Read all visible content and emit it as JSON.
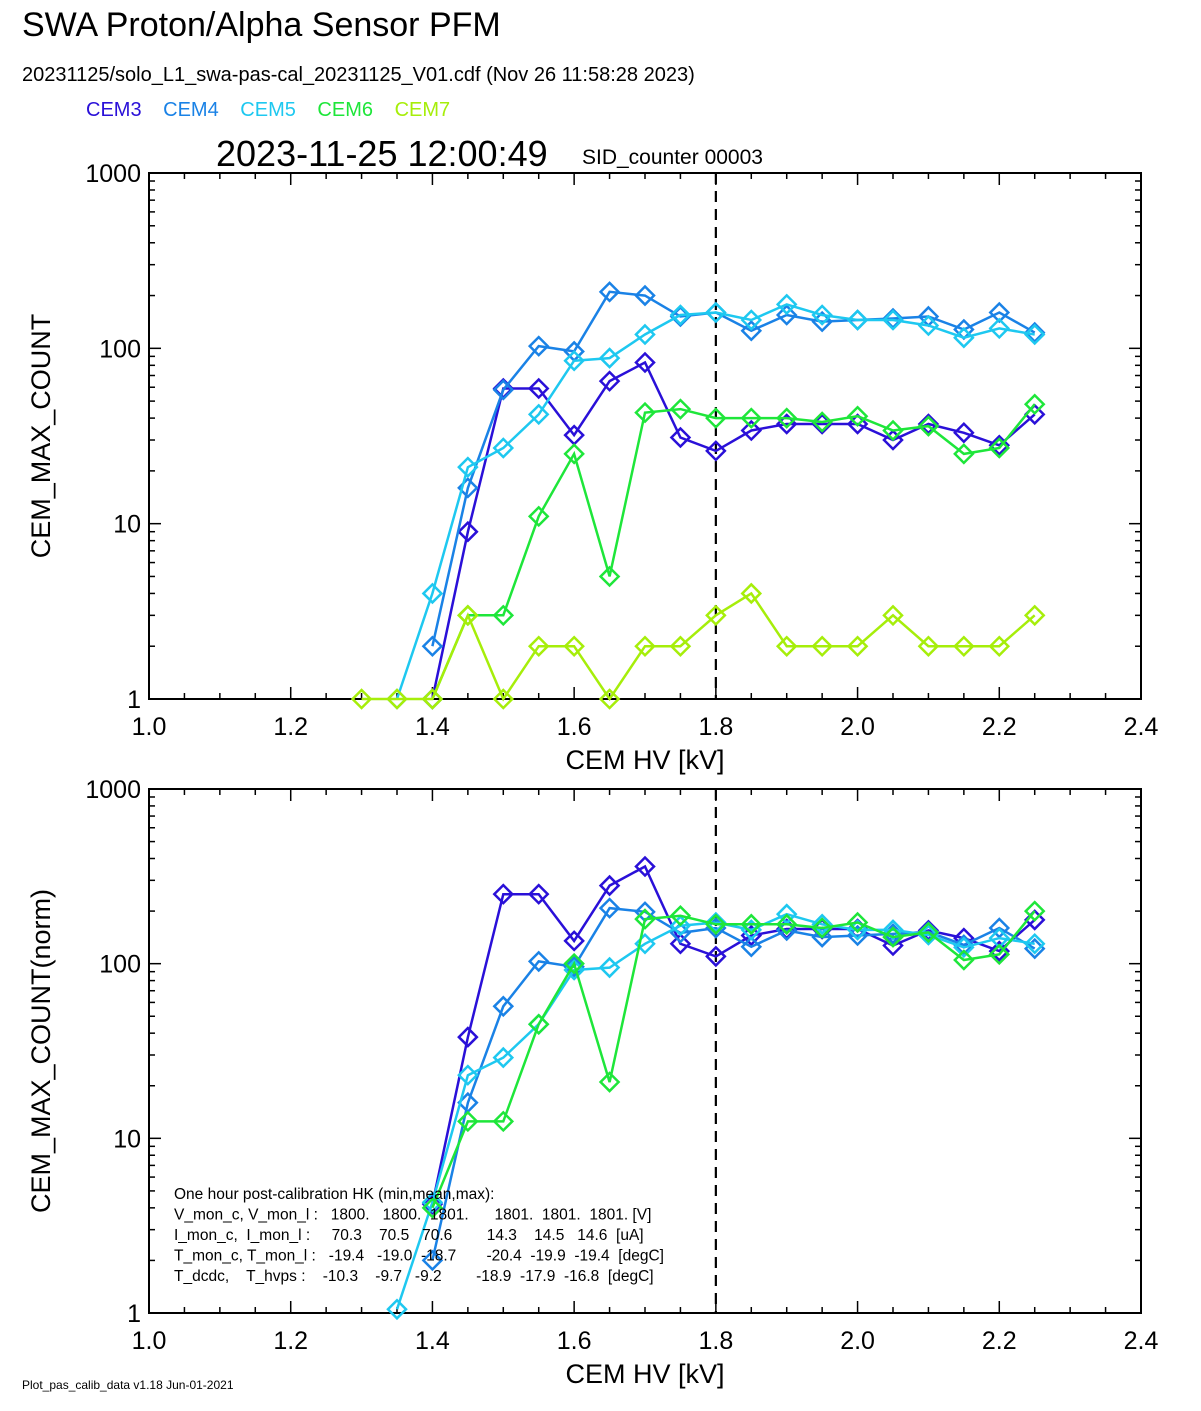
{
  "header": {
    "title": "SWA Proton/Alpha Sensor PFM",
    "subtitle": "20231125/solo_L1_swa-pas-cal_20231125_V01.cdf  (Nov 26 11:58:28 2023)",
    "timestamp": "2023-11-25 12:00:49",
    "sid": "SID_counter 00003"
  },
  "legend": [
    {
      "name": "CEM3",
      "color": "#2a10d8"
    },
    {
      "name": "CEM4",
      "color": "#1a82e6"
    },
    {
      "name": "CEM5",
      "color": "#1ec8f0"
    },
    {
      "name": "CEM6",
      "color": "#1ee63a"
    },
    {
      "name": "CEM7",
      "color": "#a6ee0a"
    }
  ],
  "footer": "Plot_pas_calib_data v1.18 Jun-01-2021",
  "chart_data": [
    {
      "type": "line",
      "xlabel": "CEM HV [kV]",
      "ylabel": "CEM_MAX_COUNT",
      "xlim": [
        1.0,
        2.4
      ],
      "ylim": [
        1,
        1000
      ],
      "yscale": "log",
      "xticks": [
        "1.0",
        "1.2",
        "1.4",
        "1.6",
        "1.8",
        "2.0",
        "2.2",
        "2.4"
      ],
      "yticks": [
        "1",
        "10",
        "100",
        "1000"
      ],
      "vline": 1.8,
      "series": [
        {
          "name": "CEM3",
          "points": [
            [
              1.4,
              1
            ],
            [
              1.45,
              9
            ],
            [
              1.5,
              59
            ],
            [
              1.55,
              59
            ],
            [
              1.6,
              32
            ],
            [
              1.65,
              65
            ],
            [
              1.7,
              83
            ],
            [
              1.75,
              31
            ],
            [
              1.8,
              26
            ],
            [
              1.85,
              34
            ],
            [
              1.9,
              37
            ],
            [
              1.95,
              37
            ],
            [
              2.0,
              37
            ],
            [
              2.05,
              30
            ],
            [
              2.1,
              37
            ],
            [
              2.15,
              33
            ],
            [
              2.2,
              28
            ],
            [
              2.25,
              42
            ]
          ]
        },
        {
          "name": "CEM4",
          "points": [
            [
              1.4,
              2
            ],
            [
              1.45,
              16
            ],
            [
              1.5,
              58
            ],
            [
              1.55,
              103
            ],
            [
              1.6,
              96
            ],
            [
              1.65,
              210
            ],
            [
              1.7,
              200
            ],
            [
              1.75,
              152
            ],
            [
              1.8,
              160
            ],
            [
              1.85,
              126
            ],
            [
              1.9,
              155
            ],
            [
              1.95,
              142
            ],
            [
              2.0,
              145
            ],
            [
              2.05,
              148
            ],
            [
              2.1,
              152
            ],
            [
              2.15,
              128
            ],
            [
              2.2,
              160
            ],
            [
              2.25,
              123
            ]
          ]
        },
        {
          "name": "CEM5",
          "points": [
            [
              1.35,
              1
            ],
            [
              1.4,
              4
            ],
            [
              1.45,
              21
            ],
            [
              1.5,
              27
            ],
            [
              1.55,
              42
            ],
            [
              1.6,
              85
            ],
            [
              1.65,
              88
            ],
            [
              1.7,
              120
            ],
            [
              1.75,
              155
            ],
            [
              1.8,
              160
            ],
            [
              1.85,
              145
            ],
            [
              1.9,
              178
            ],
            [
              1.95,
              155
            ],
            [
              2.0,
              145
            ],
            [
              2.05,
              145
            ],
            [
              2.1,
              135
            ],
            [
              2.15,
              115
            ],
            [
              2.2,
              130
            ],
            [
              2.25,
              120
            ]
          ]
        },
        {
          "name": "CEM6",
          "points": [
            [
              1.4,
              1
            ],
            [
              1.45,
              3
            ],
            [
              1.5,
              3
            ],
            [
              1.55,
              11
            ],
            [
              1.6,
              25
            ],
            [
              1.65,
              5
            ],
            [
              1.7,
              43
            ],
            [
              1.75,
              45
            ],
            [
              1.8,
              40
            ],
            [
              1.85,
              40
            ],
            [
              1.9,
              40
            ],
            [
              1.95,
              38
            ],
            [
              2.0,
              41
            ],
            [
              2.05,
              34
            ],
            [
              2.1,
              36
            ],
            [
              2.15,
              25
            ],
            [
              2.2,
              27
            ],
            [
              2.25,
              48
            ]
          ]
        },
        {
          "name": "CEM7",
          "points": [
            [
              1.3,
              1
            ],
            [
              1.35,
              1
            ],
            [
              1.4,
              1
            ],
            [
              1.45,
              3
            ],
            [
              1.5,
              1
            ],
            [
              1.55,
              2
            ],
            [
              1.6,
              2
            ],
            [
              1.65,
              1
            ],
            [
              1.7,
              2
            ],
            [
              1.75,
              2
            ],
            [
              1.8,
              3
            ],
            [
              1.85,
              4
            ],
            [
              1.9,
              2
            ],
            [
              1.95,
              2
            ],
            [
              2.0,
              2
            ],
            [
              2.05,
              3
            ],
            [
              2.1,
              2
            ],
            [
              2.15,
              2
            ],
            [
              2.2,
              2
            ],
            [
              2.25,
              3
            ]
          ]
        }
      ]
    },
    {
      "type": "line",
      "xlabel": "CEM HV [kV]",
      "ylabel": "CEM_MAX_COUNT(norm)",
      "xlim": [
        1.0,
        2.4
      ],
      "ylim": [
        1,
        1000
      ],
      "yscale": "log",
      "xticks": [
        "1.0",
        "1.2",
        "1.4",
        "1.6",
        "1.8",
        "2.0",
        "2.2",
        "2.4"
      ],
      "yticks": [
        "1",
        "10",
        "100",
        "1000"
      ],
      "vline": 1.8,
      "series": [
        {
          "name": "CEM3",
          "points": [
            [
              1.4,
              4.2
            ],
            [
              1.45,
              38
            ],
            [
              1.5,
              250
            ],
            [
              1.55,
              250
            ],
            [
              1.6,
              135
            ],
            [
              1.65,
              280
            ],
            [
              1.7,
              360
            ],
            [
              1.75,
              130
            ],
            [
              1.8,
              110
            ],
            [
              1.85,
              145
            ],
            [
              1.9,
              158
            ],
            [
              1.95,
              158
            ],
            [
              2.0,
              158
            ],
            [
              2.05,
              127
            ],
            [
              2.1,
              155
            ],
            [
              2.15,
              140
            ],
            [
              2.2,
              118
            ],
            [
              2.25,
              178
            ]
          ]
        },
        {
          "name": "CEM4",
          "points": [
            [
              1.4,
              2
            ],
            [
              1.45,
              16
            ],
            [
              1.5,
              57
            ],
            [
              1.55,
              103
            ],
            [
              1.6,
              96
            ],
            [
              1.65,
              208
            ],
            [
              1.7,
              198
            ],
            [
              1.75,
              150
            ],
            [
              1.8,
              160
            ],
            [
              1.85,
              125
            ],
            [
              1.9,
              155
            ],
            [
              1.95,
              142
            ],
            [
              2.0,
              145
            ],
            [
              2.05,
              148
            ],
            [
              2.1,
              152
            ],
            [
              2.15,
              128
            ],
            [
              2.2,
              160
            ],
            [
              2.25,
              122
            ]
          ]
        },
        {
          "name": "CEM5",
          "points": [
            [
              1.35,
              1.05
            ],
            [
              1.4,
              4.3
            ],
            [
              1.45,
              23
            ],
            [
              1.5,
              29
            ],
            [
              1.55,
              45
            ],
            [
              1.6,
              92
            ],
            [
              1.65,
              95
            ],
            [
              1.7,
              130
            ],
            [
              1.75,
              165
            ],
            [
              1.8,
              172
            ],
            [
              1.85,
              156
            ],
            [
              1.9,
              192
            ],
            [
              1.95,
              168
            ],
            [
              2.0,
              156
            ],
            [
              2.05,
              156
            ],
            [
              2.1,
              146
            ],
            [
              2.15,
              124
            ],
            [
              2.2,
              140
            ],
            [
              2.25,
              130
            ]
          ]
        },
        {
          "name": "CEM6",
          "points": [
            [
              1.4,
              4
            ],
            [
              1.45,
              12.5
            ],
            [
              1.5,
              12.5
            ],
            [
              1.55,
              45
            ],
            [
              1.6,
              100
            ],
            [
              1.65,
              21
            ],
            [
              1.7,
              180
            ],
            [
              1.75,
              188
            ],
            [
              1.8,
              168
            ],
            [
              1.85,
              168
            ],
            [
              1.9,
              168
            ],
            [
              1.95,
              160
            ],
            [
              2.0,
              172
            ],
            [
              2.05,
              142
            ],
            [
              2.1,
              151
            ],
            [
              2.15,
              105
            ],
            [
              2.2,
              113
            ],
            [
              2.25,
              200
            ]
          ]
        }
      ],
      "annotation": [
        "One hour post-calibration HK (min,mean,max):",
        "V_mon_c, V_mon_l :   1800.   1800.  1801.      1801.  1801.  1801. [V]",
        "I_mon_c,  I_mon_l :     70.3    70.5   70.6        14.3    14.5   14.6  [uA]",
        "T_mon_c, T_mon_l :   -19.4   -19.0  -18.7       -20.4  -19.9  -19.4  [degC]",
        "T_dcdc,    T_hvps :    -10.3    -9.7   -9.2        -18.9  -17.9  -16.8  [degC]"
      ]
    }
  ]
}
